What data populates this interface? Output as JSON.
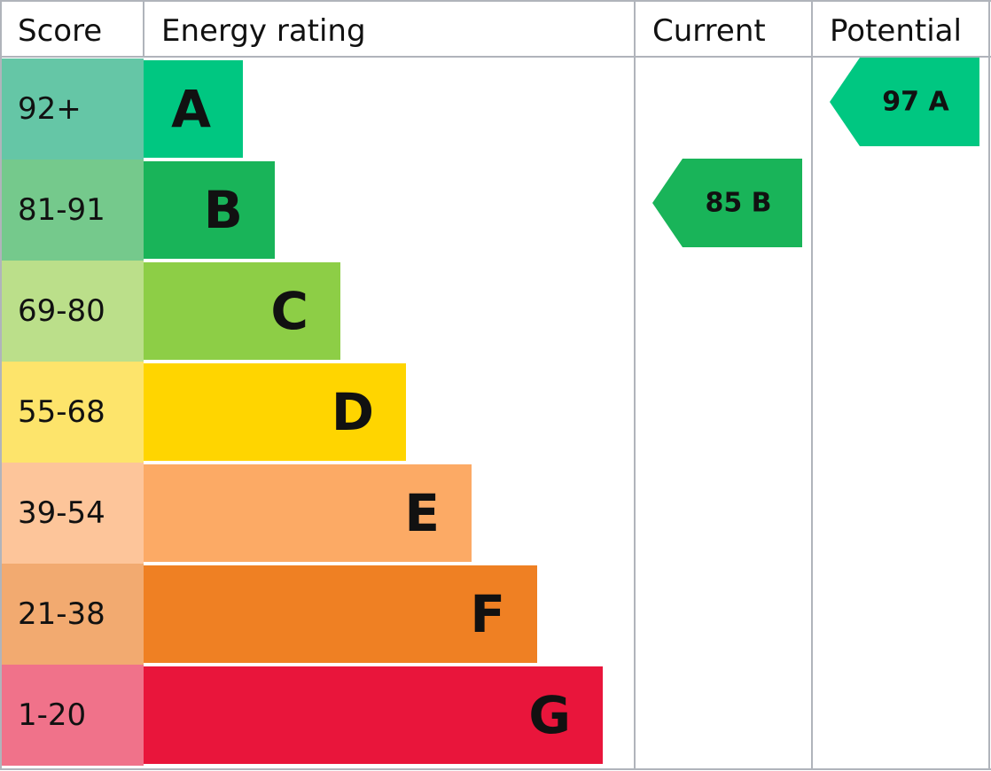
{
  "header": {
    "score": "Score",
    "rating": "Energy rating",
    "current": "Current",
    "potential": "Potential"
  },
  "bands": [
    {
      "score": "92+",
      "letter": "A",
      "color": "#00c781",
      "score_color": "#65c6a6"
    },
    {
      "score": "81-91",
      "letter": "B",
      "color": "#19b459",
      "score_color": "#75c98c"
    },
    {
      "score": "69-80",
      "letter": "C",
      "color": "#8dce46",
      "score_color": "#bbdf8a"
    },
    {
      "score": "55-68",
      "letter": "D",
      "color": "#ffd500",
      "score_color": "#fde46b"
    },
    {
      "score": "39-54",
      "letter": "E",
      "color": "#fcaa65",
      "score_color": "#fdc59a"
    },
    {
      "score": "21-38",
      "letter": "F",
      "color": "#ef8023",
      "score_color": "#f2aa70"
    },
    {
      "score": "1-20",
      "letter": "G",
      "color": "#e9153b",
      "score_color": "#f0728a"
    }
  ],
  "current": "85 B",
  "potential": "97 A"
}
